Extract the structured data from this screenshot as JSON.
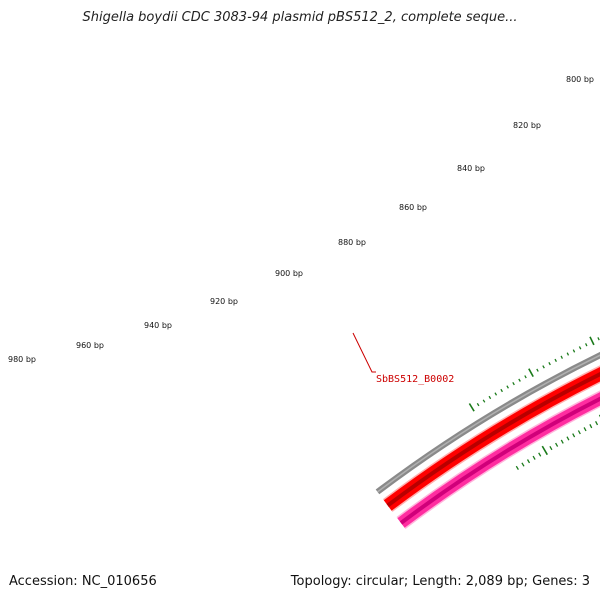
{
  "title": "Shigella boydii CDC 3083-94 plasmid pBS512_2, complete seque...",
  "footer": {
    "accession": "Accession: NC_010656",
    "summary": "Topology: circular; Length: 2,089 bp; Genes: 3"
  },
  "plasmid": {
    "length_bp": 2089,
    "topology": "circular",
    "accession": "NC_010656"
  },
  "ticks": {
    "labels": [
      "800 bp",
      "820 bp",
      "840 bp",
      "860 bp",
      "880 bp",
      "900 bp",
      "920 bp",
      "940 bp",
      "960 bp",
      "980 bp"
    ],
    "color": "#1a7a1a"
  },
  "tracks": [
    {
      "name": "backbone",
      "color": "#8a8a8a"
    },
    {
      "name": "forward-gene",
      "color": "#ff0000"
    },
    {
      "name": "reverse-gene",
      "color": "#ff2da0"
    }
  ],
  "genes": [
    {
      "label": "SbBS512_B0002",
      "color": "#cc0000"
    }
  ]
}
